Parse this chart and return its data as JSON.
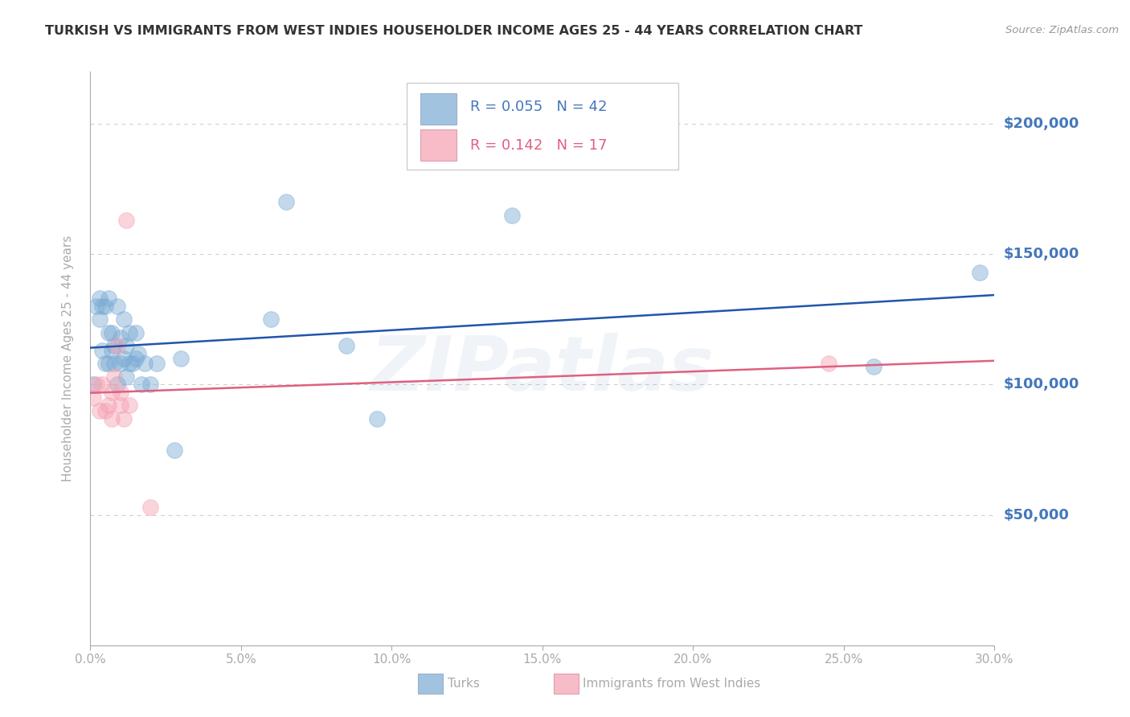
{
  "title": "TURKISH VS IMMIGRANTS FROM WEST INDIES HOUSEHOLDER INCOME AGES 25 - 44 YEARS CORRELATION CHART",
  "source": "Source: ZipAtlas.com",
  "ylabel": "Householder Income Ages 25 - 44 years",
  "xlim": [
    0.0,
    0.3
  ],
  "ylim": [
    0,
    220000
  ],
  "xtick_labels": [
    "0.0%",
    "",
    "",
    "",
    "",
    "",
    "",
    "",
    "",
    "5.0%",
    "",
    "",
    "",
    "",
    "",
    "",
    "",
    "",
    "",
    "10.0%",
    "",
    "",
    "",
    "",
    "",
    "",
    "",
    "",
    "",
    "15.0%",
    "",
    "",
    "",
    "",
    "",
    "",
    "",
    "",
    "",
    "20.0%",
    "",
    "",
    "",
    "",
    "",
    "",
    "",
    "",
    "",
    "25.0%",
    "",
    "",
    "",
    "",
    "",
    "",
    "",
    "",
    "",
    "30.0%"
  ],
  "xtick_values_labeled": [
    0.0,
    0.05,
    0.1,
    0.15,
    0.2,
    0.25,
    0.3
  ],
  "xtick_labels_labeled": [
    "0.0%",
    "5.0%",
    "10.0%",
    "15.0%",
    "20.0%",
    "25.0%",
    "30.0%"
  ],
  "ytick_labels": [
    "$50,000",
    "$100,000",
    "$150,000",
    "$200,000"
  ],
  "ytick_values": [
    50000,
    100000,
    150000,
    200000
  ],
  "background_color": "#ffffff",
  "grid_color": "#cccccc",
  "title_color": "#333333",
  "axis_color": "#aaaaaa",
  "blue_color": "#7aaad4",
  "pink_color": "#f5a0b0",
  "blue_line_color": "#2255aa",
  "pink_line_color": "#e06080",
  "right_label_color": "#4477bb",
  "legend_label1_r": "0.055",
  "legend_label1_n": "42",
  "legend_label2_r": "0.142",
  "legend_label2_n": "17",
  "bottom_legend_turks": "Turks",
  "bottom_legend_west_indies": "Immigrants from West Indies",
  "turks_x": [
    0.001,
    0.002,
    0.003,
    0.003,
    0.004,
    0.004,
    0.005,
    0.005,
    0.006,
    0.006,
    0.006,
    0.007,
    0.007,
    0.008,
    0.008,
    0.009,
    0.009,
    0.01,
    0.01,
    0.011,
    0.011,
    0.012,
    0.012,
    0.013,
    0.013,
    0.014,
    0.015,
    0.015,
    0.016,
    0.017,
    0.018,
    0.02,
    0.022,
    0.028,
    0.03,
    0.06,
    0.065,
    0.085,
    0.095,
    0.14,
    0.26,
    0.295
  ],
  "turks_y": [
    100000,
    130000,
    133000,
    125000,
    130000,
    113000,
    130000,
    108000,
    133000,
    120000,
    108000,
    120000,
    113000,
    115000,
    108000,
    130000,
    100000,
    118000,
    108000,
    125000,
    110000,
    115000,
    103000,
    120000,
    108000,
    108000,
    120000,
    110000,
    112000,
    100000,
    108000,
    100000,
    108000,
    75000,
    110000,
    125000,
    170000,
    115000,
    87000,
    165000,
    107000,
    143000
  ],
  "west_x": [
    0.001,
    0.002,
    0.003,
    0.004,
    0.005,
    0.006,
    0.007,
    0.007,
    0.008,
    0.009,
    0.01,
    0.01,
    0.011,
    0.012,
    0.013,
    0.02,
    0.245
  ],
  "west_y": [
    95000,
    100000,
    90000,
    100000,
    90000,
    92000,
    87000,
    97000,
    103000,
    115000,
    97000,
    92000,
    87000,
    163000,
    92000,
    53000,
    108000
  ],
  "marker_size": 200,
  "marker_alpha": 0.45,
  "line_width": 1.8,
  "watermark_text": "ZIPatlas",
  "watermark_alpha": 0.12,
  "watermark_color": "#88aacc"
}
